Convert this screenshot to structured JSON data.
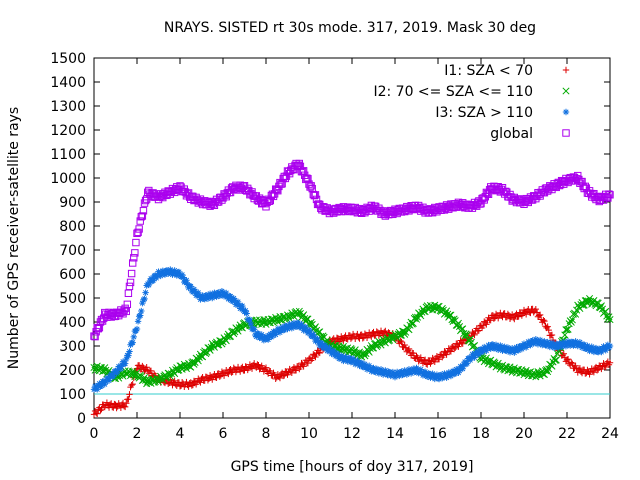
{
  "chart_data": {
    "type": "scatter",
    "title": "NRAYS. SISTED rt 30s mode. 317, 2019. Mask 30 deg",
    "xlabel": "GPS time [hours of doy 317, 2019]",
    "ylabel": "Number of GPS receiver-satellite rays",
    "xlim": [
      0,
      24
    ],
    "ylim": [
      0,
      1500
    ],
    "x_ticks": [
      "0",
      "2",
      "4",
      "6",
      "8",
      "10",
      "12",
      "14",
      "16",
      "18",
      "20",
      "22",
      "24"
    ],
    "y_ticks": [
      "0",
      "100",
      "200",
      "300",
      "400",
      "500",
      "600",
      "700",
      "800",
      "900",
      "1000",
      "1100",
      "1200",
      "1300",
      "1400",
      "1500"
    ],
    "legend_position": "top-right",
    "reference_line": {
      "y": 100,
      "color": "#33cccc"
    },
    "series": [
      {
        "name": "I1: SZA < 70",
        "marker": "+",
        "color": "#dd0000",
        "x": [
          0,
          0.5,
          1,
          1.5,
          2,
          2.5,
          3,
          3.5,
          4,
          4.5,
          5,
          5.5,
          6,
          6.5,
          7,
          7.5,
          8,
          8.5,
          9,
          9.5,
          10,
          10.5,
          11,
          11.5,
          12,
          12.5,
          13,
          13.5,
          14,
          14.5,
          15,
          15.5,
          16,
          16.5,
          17,
          17.5,
          18,
          18.5,
          19,
          19.5,
          20,
          20.5,
          21,
          21.5,
          22,
          22.5,
          23,
          23.5,
          24
        ],
        "y": [
          15,
          55,
          50,
          55,
          215,
          200,
          160,
          150,
          140,
          140,
          160,
          170,
          185,
          200,
          205,
          220,
          200,
          170,
          190,
          210,
          240,
          280,
          320,
          330,
          340,
          340,
          350,
          355,
          340,
          290,
          250,
          230,
          250,
          280,
          310,
          340,
          380,
          420,
          430,
          420,
          440,
          450,
          390,
          300,
          240,
          200,
          190,
          210,
          230
        ]
      },
      {
        "name": "I2: 70 <= SZA <= 110",
        "marker": "x",
        "color": "#00aa00",
        "x": [
          0,
          0.5,
          1,
          1.5,
          2,
          2.5,
          3,
          3.5,
          4,
          4.5,
          5,
          5.5,
          6,
          6.5,
          7,
          7.5,
          8,
          8.5,
          9,
          9.5,
          10,
          10.5,
          11,
          11.5,
          12,
          12.5,
          13,
          13.5,
          14,
          14.5,
          15,
          15.5,
          16,
          16.5,
          17,
          17.5,
          18,
          18.5,
          19,
          19.5,
          20,
          20.5,
          21,
          21.5,
          22,
          22.5,
          23,
          23.5,
          24
        ],
        "y": [
          210,
          200,
          170,
          190,
          180,
          150,
          160,
          180,
          210,
          220,
          260,
          300,
          320,
          360,
          390,
          400,
          400,
          410,
          420,
          440,
          400,
          350,
          300,
          290,
          280,
          260,
          300,
          320,
          340,
          360,
          420,
          460,
          460,
          430,
          380,
          320,
          250,
          230,
          210,
          200,
          190,
          180,
          190,
          250,
          370,
          460,
          490,
          470,
          410
        ]
      },
      {
        "name": "I3: SZA > 110",
        "marker": "*",
        "color": "#1070e0",
        "x": [
          0,
          0.5,
          1,
          1.5,
          2,
          2.5,
          3,
          3.5,
          4,
          4.5,
          5,
          5.5,
          6,
          6.5,
          7,
          7.5,
          8,
          8.5,
          9,
          9.5,
          10,
          10.5,
          11,
          11.5,
          12,
          12.5,
          13,
          13.5,
          14,
          14.5,
          15,
          15.5,
          16,
          16.5,
          17,
          17.5,
          18,
          18.5,
          19,
          19.5,
          20,
          20.5,
          21,
          21.5,
          22,
          22.5,
          23,
          23.5,
          24
        ],
        "y": [
          120,
          150,
          190,
          240,
          380,
          560,
          600,
          610,
          600,
          540,
          500,
          510,
          520,
          490,
          450,
          350,
          330,
          360,
          380,
          390,
          360,
          310,
          280,
          250,
          240,
          220,
          200,
          190,
          180,
          190,
          200,
          180,
          170,
          180,
          200,
          250,
          280,
          300,
          290,
          280,
          300,
          320,
          310,
          300,
          310,
          310,
          290,
          280,
          300
        ]
      },
      {
        "name": "global",
        "marker": "square",
        "color": "#aa00ee",
        "x": [
          0,
          0.5,
          1,
          1.5,
          2,
          2.5,
          3,
          3.5,
          4,
          4.5,
          5,
          5.5,
          6,
          6.5,
          7,
          7.5,
          8,
          8.5,
          9,
          9.5,
          10,
          10.5,
          11,
          11.5,
          12,
          12.5,
          13,
          13.5,
          14,
          14.5,
          15,
          15.5,
          16,
          16.5,
          17,
          17.5,
          18,
          18.5,
          19,
          19.5,
          20,
          20.5,
          21,
          21.5,
          22,
          22.5,
          23,
          23.5,
          24
        ],
        "y": [
          340,
          430,
          430,
          450,
          760,
          940,
          920,
          940,
          960,
          920,
          900,
          890,
          920,
          960,
          960,
          920,
          890,
          950,
          1020,
          1060,
          980,
          880,
          860,
          870,
          870,
          860,
          880,
          850,
          860,
          870,
          880,
          860,
          870,
          880,
          890,
          880,
          900,
          960,
          950,
          910,
          900,
          920,
          950,
          970,
          990,
          1000,
          940,
          910,
          930
        ]
      }
    ]
  }
}
